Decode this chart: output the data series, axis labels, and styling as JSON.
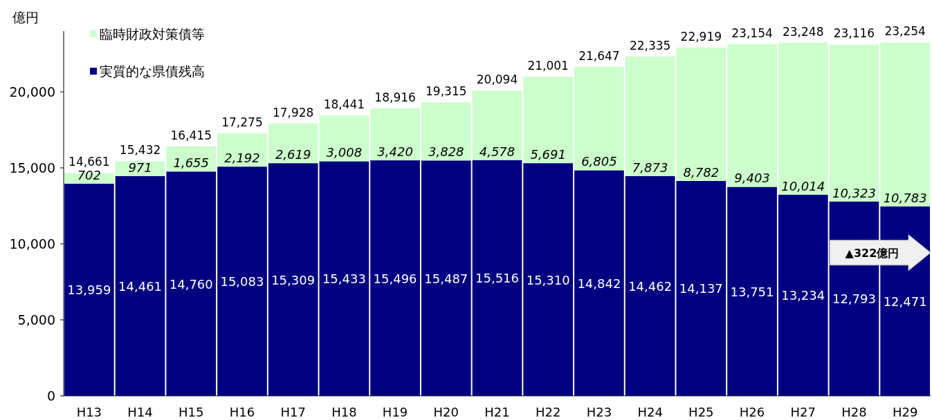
{
  "chart_data": {
    "type": "bar",
    "stacked": true,
    "legend": "top left",
    "ylabel": "億円",
    "categories": [
      "H13",
      "H14",
      "H15",
      "H16",
      "H17",
      "H18",
      "H19",
      "H20",
      "H21",
      "H22",
      "H23",
      "H24",
      "H25",
      "H26",
      "H27",
      "H28",
      "H29"
    ],
    "series": [
      {
        "name": "実質的な県債残高",
        "color": "#000080",
        "values": [
          13959,
          14461,
          14760,
          15083,
          15309,
          15433,
          15496,
          15487,
          15516,
          15310,
          14842,
          14462,
          14137,
          13751,
          13234,
          12793,
          12471
        ],
        "value_labels": [
          "13,959",
          "14,461",
          "14,760",
          "15,083",
          "15,309",
          "15,433",
          "15,496",
          "15,487",
          "15,516",
          "15,310",
          "14,842",
          "14,462",
          "14,137",
          "13,751",
          "13,234",
          "12,793",
          "12,471"
        ]
      },
      {
        "name": "臨時財政対策債等",
        "color": "#ccffcc",
        "values": [
          702,
          971,
          1655,
          2192,
          2619,
          3008,
          3420,
          3828,
          4578,
          5691,
          6805,
          7873,
          8782,
          9403,
          10014,
          10323,
          10783
        ],
        "value_labels": [
          "702",
          "971",
          "1,655",
          "2,192",
          "2,619",
          "3,008",
          "3,420",
          "3,828",
          "4,578",
          "5,691",
          "6,805",
          "7,873",
          "8,782",
          "9,403",
          "10,014",
          "10,323",
          "10,783"
        ]
      }
    ],
    "totals": [
      "14,661",
      "15,432",
      "16,415",
      "17,275",
      "17,928",
      "18,441",
      "18,916",
      "19,315",
      "20,094",
      "21,001",
      "21,647",
      "22,335",
      "22,919",
      "23,154",
      "23,248",
      "23,116",
      "23,254"
    ],
    "ylim": [
      0,
      24000
    ],
    "yticks": [
      {
        "value": 0,
        "label": "0"
      },
      {
        "value": 5000,
        "label": "5,000"
      },
      {
        "value": 10000,
        "label": "10,000"
      },
      {
        "value": 15000,
        "label": "15,000"
      },
      {
        "value": 20000,
        "label": "20,000"
      }
    ],
    "annotations": [
      "▲322億円"
    ]
  }
}
